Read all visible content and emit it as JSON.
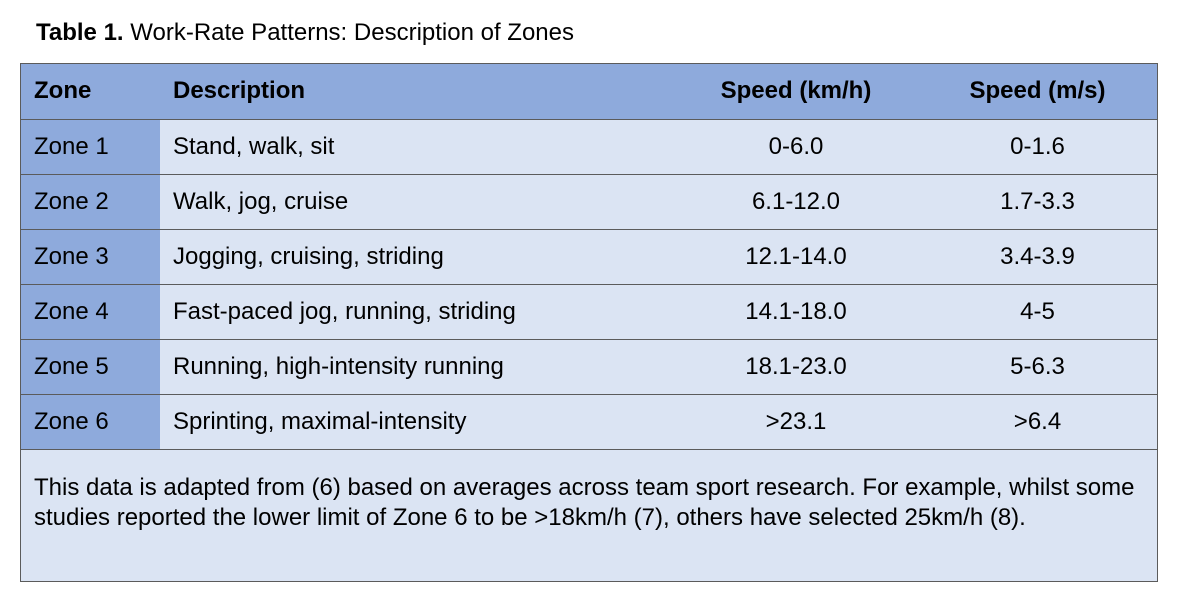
{
  "caption": {
    "label": "Table 1.",
    "title": "Work-Rate Patterns: Description of Zones"
  },
  "table": {
    "headers": {
      "zone": "Zone",
      "description": "Description",
      "speed_kmh": "Speed (km/h)",
      "speed_ms": "Speed (m/s)"
    },
    "rows": [
      {
        "zone": "Zone 1",
        "description": "Stand, walk, sit",
        "speed_kmh": "0-6.0",
        "speed_ms": "0-1.6"
      },
      {
        "zone": "Zone 2",
        "description": "Walk, jog, cruise",
        "speed_kmh": "6.1-12.0",
        "speed_ms": "1.7-3.3"
      },
      {
        "zone": "Zone 3",
        "description": "Jogging, cruising, striding",
        "speed_kmh": "12.1-14.0",
        "speed_ms": "3.4-3.9"
      },
      {
        "zone": "Zone 4",
        "description": "Fast-paced jog, running, striding",
        "speed_kmh": "14.1-18.0",
        "speed_ms": "4-5"
      },
      {
        "zone": "Zone 5",
        "description": "Running, high-intensity running",
        "speed_kmh": "18.1-23.0",
        "speed_ms": "5-6.3"
      },
      {
        "zone": "Zone 6",
        "description": "Sprinting, maximal-intensity",
        "speed_kmh": ">23.1",
        "speed_ms": ">6.4"
      }
    ],
    "note": "This data is adapted from (6) based on averages across team sport research. For example, whilst some studies reported the lower limit of Zone 6 to be >18km/h (7), others have selected 25km/h (8)."
  },
  "colors": {
    "header_bg": "#8eaadc",
    "cell_bg": "#dbe4f3",
    "border": "#5b5b5b"
  }
}
